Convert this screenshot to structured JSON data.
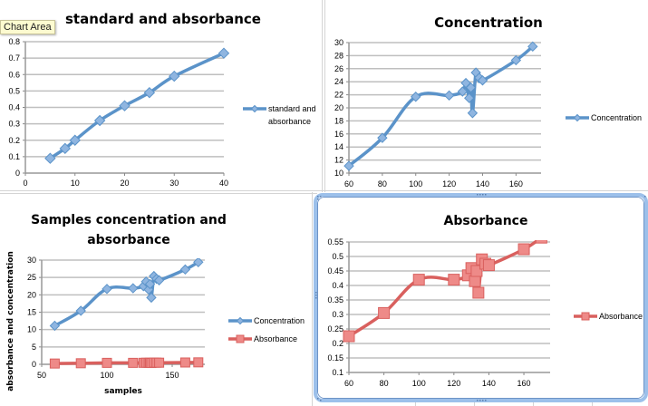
{
  "tooltip": "Chart Area",
  "colors": {
    "blue_series": "#5b93c9",
    "blue_marker": "#8fb5e0",
    "red_series": "#d9605e",
    "red_marker": "#ee8a88",
    "gridline": "#bfbfbf",
    "selection": "#9cc0ea"
  },
  "chart_data": [
    {
      "id": "standard",
      "type": "line",
      "title": "standard and absorbance",
      "xlabel": "",
      "ylabel": "",
      "xlim": [
        0,
        40
      ],
      "ylim": [
        0,
        0.8
      ],
      "xticks": [
        "0",
        "10",
        "20",
        "30",
        "40"
      ],
      "yticks": [
        "0",
        "0.1",
        "0.2",
        "0.3",
        "0.4",
        "0.5",
        "0.6",
        "0.7",
        "0.8"
      ],
      "grid": true,
      "legend": "right",
      "series": [
        {
          "name": "standard and absorbance",
          "marker": "diamond",
          "color": "#5b93c9",
          "x": [
            5,
            8,
            10,
            15,
            20,
            25,
            30,
            40
          ],
          "y": [
            0.09,
            0.15,
            0.2,
            0.32,
            0.41,
            0.49,
            0.59,
            0.73
          ]
        }
      ]
    },
    {
      "id": "concentration",
      "type": "line",
      "title": "Concentration",
      "xlabel": "",
      "ylabel": "",
      "xlim": [
        60,
        175
      ],
      "ylim": [
        10,
        30
      ],
      "xticks": [
        "60",
        "80",
        "100",
        "120",
        "140",
        "160"
      ],
      "yticks": [
        "10",
        "12",
        "14",
        "16",
        "18",
        "20",
        "22",
        "24",
        "26",
        "28",
        "30"
      ],
      "grid": true,
      "legend": "right",
      "series": [
        {
          "name": "Concentration",
          "marker": "diamond",
          "color": "#5b93c9",
          "x": [
            60,
            80,
            100,
            120,
            128,
            130,
            132,
            133,
            134,
            136,
            138,
            140,
            160,
            170
          ],
          "y": [
            11.1,
            15.4,
            21.7,
            21.9,
            22.5,
            23.8,
            21.5,
            23.1,
            19.2,
            25.4,
            24.6,
            24.2,
            27.3,
            29.4
          ]
        }
      ]
    },
    {
      "id": "samples",
      "type": "line",
      "title": "Samples concentration and absorbance",
      "title_lines": [
        "Samples concentration and",
        "absorbance"
      ],
      "xlabel": "samples",
      "ylabel": "absorbance and concentration",
      "xlim": [
        50,
        175
      ],
      "ylim": [
        0,
        30
      ],
      "xticks": [
        "50",
        "100",
        "150"
      ],
      "yticks": [
        "0",
        "5",
        "10",
        "15",
        "20",
        "25",
        "30"
      ],
      "grid": true,
      "legend": "right",
      "series": [
        {
          "name": "Concentration",
          "marker": "diamond",
          "color": "#5b93c9",
          "x": [
            60,
            80,
            100,
            120,
            128,
            130,
            132,
            133,
            134,
            136,
            138,
            140,
            160,
            170
          ],
          "y": [
            11.1,
            15.4,
            21.7,
            21.9,
            22.5,
            23.8,
            21.5,
            23.1,
            19.2,
            25.4,
            24.6,
            24.2,
            27.3,
            29.4
          ]
        },
        {
          "name": "Absorbance",
          "marker": "square",
          "color": "#d9605e",
          "x": [
            60,
            80,
            100,
            120,
            128,
            130,
            132,
            133,
            134,
            136,
            138,
            140,
            160,
            170
          ],
          "y": [
            0.225,
            0.305,
            0.42,
            0.42,
            0.435,
            0.46,
            0.415,
            0.45,
            0.375,
            0.49,
            0.475,
            0.47,
            0.525,
            0.565
          ]
        }
      ]
    },
    {
      "id": "absorbance",
      "type": "line",
      "title": "Absorbance",
      "xlabel": "",
      "ylabel": "",
      "xlim": [
        60,
        175
      ],
      "ylim": [
        0.1,
        0.55
      ],
      "xticks": [
        "60",
        "80",
        "100",
        "120",
        "140",
        "160"
      ],
      "yticks": [
        "0.1",
        "0.15",
        "0.2",
        "0.25",
        "0.3",
        "0.35",
        "0.4",
        "0.45",
        "0.5",
        "0.55"
      ],
      "grid": true,
      "legend": "right",
      "selected": true,
      "series": [
        {
          "name": "Absorbance",
          "marker": "square",
          "color": "#d9605e",
          "x": [
            60,
            80,
            100,
            120,
            128,
            130,
            132,
            133,
            134,
            136,
            138,
            140,
            160,
            170
          ],
          "y": [
            0.225,
            0.305,
            0.42,
            0.42,
            0.435,
            0.46,
            0.415,
            0.45,
            0.375,
            0.49,
            0.475,
            0.47,
            0.525,
            0.565
          ]
        }
      ]
    }
  ]
}
